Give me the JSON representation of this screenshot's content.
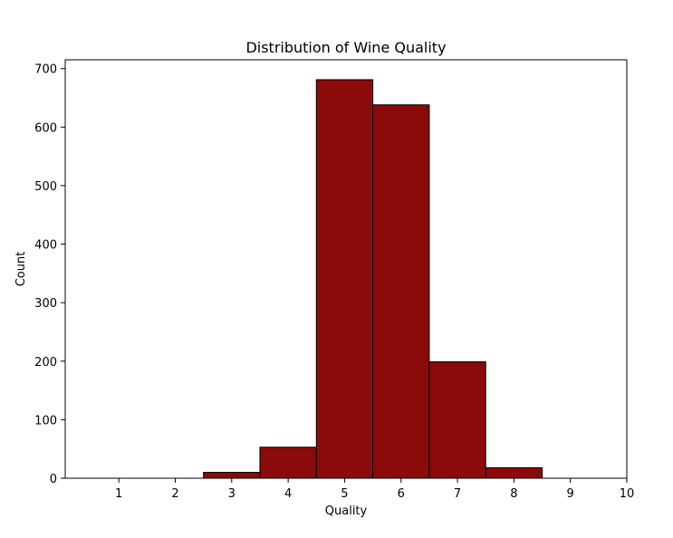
{
  "chart_data": {
    "type": "bar",
    "title": "Distribution of Wine Quality",
    "xlabel": "Quality",
    "ylabel": "Count",
    "bin_edges": [
      0.5,
      1.5,
      2.5,
      3.5,
      4.5,
      5.5,
      6.5,
      7.5,
      8.5,
      9.5
    ],
    "categories": [
      "1",
      "2",
      "3",
      "4",
      "5",
      "6",
      "7",
      "8",
      "9"
    ],
    "values": [
      0,
      0,
      10,
      53,
      681,
      638,
      199,
      18,
      0
    ],
    "xlim": [
      0.05,
      10
    ],
    "ylim": [
      0,
      715
    ],
    "xticks": [
      1,
      2,
      3,
      4,
      5,
      6,
      7,
      8,
      9,
      10
    ],
    "yticks": [
      0,
      100,
      200,
      300,
      400,
      500,
      600,
      700
    ],
    "bar_color": "#8b0a0a",
    "edge_color": "#000000",
    "grid": false
  }
}
